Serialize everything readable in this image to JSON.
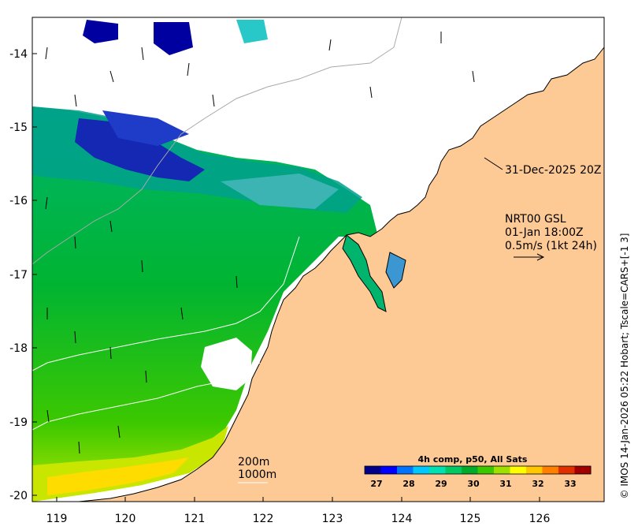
{
  "map": {
    "lon_ticks": [
      "119",
      "120",
      "121",
      "122",
      "123",
      "124",
      "125",
      "126"
    ],
    "lat_ticks": [
      "-14",
      "-15",
      "-16",
      "-17",
      "-18",
      "-19",
      "-20"
    ],
    "colors": {
      "land": "#fdc995",
      "no_data": "#ffffff",
      "coast": "#000000",
      "contour": "#a9a9a9"
    }
  },
  "annotations": {
    "date_label": "31-Dec-2025 20Z",
    "model_line1": "NRT00 GSL",
    "model_line2": "01-Jan 18:00Z",
    "model_line3": "0.5m/s (1kt 24h)",
    "depth_200": "200m",
    "depth_1000": "1000m",
    "credit": "© IMOS 14-Jan-2026 05:22 Hobart; Tscale=CARS+[-1 3]"
  },
  "colorbar": {
    "title": "4h comp, p50, All Sats",
    "ticks": [
      "27",
      "28",
      "29",
      "30",
      "31",
      "32",
      "33"
    ],
    "colors": [
      "#00008b",
      "#0000ff",
      "#0073ff",
      "#00c8ff",
      "#00e0b0",
      "#00c864",
      "#00aa2a",
      "#3cc800",
      "#9ee000",
      "#ffff00",
      "#ffc800",
      "#ff8000",
      "#e03000",
      "#a00000"
    ]
  }
}
